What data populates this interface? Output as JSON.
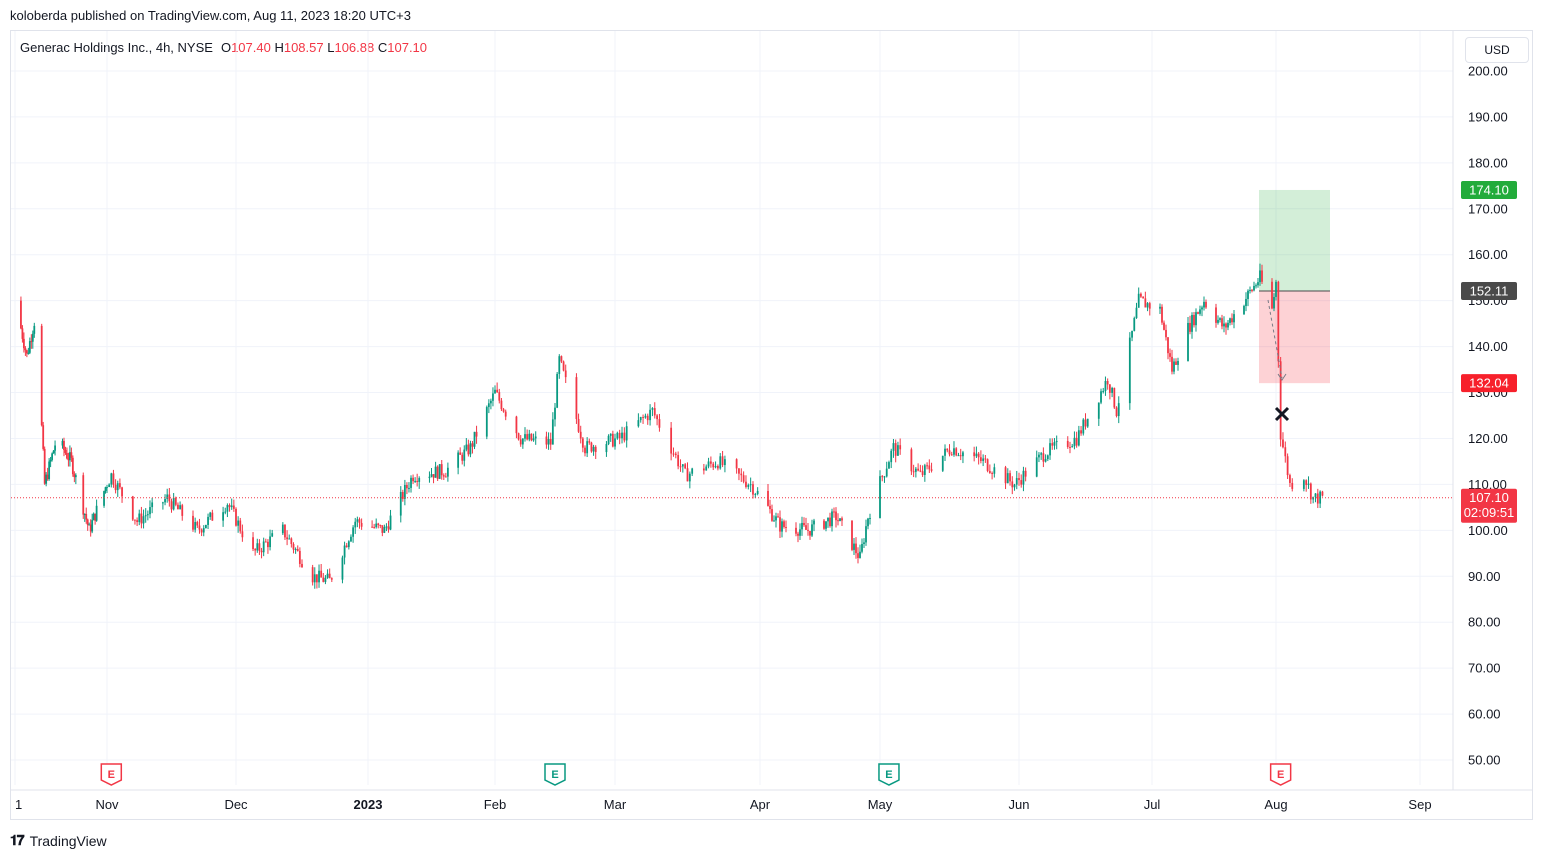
{
  "header": {
    "published": "koloberda published on TradingView.com, Aug 11, 2023 18:20 UTC+3"
  },
  "legend": {
    "symbol": "Generac Holdings Inc., 4h, NYSE",
    "o_label": "O",
    "o_value": "107.40",
    "h_label": "H",
    "h_value": "108.57",
    "l_label": "L",
    "l_value": "106.88",
    "c_label": "C",
    "c_value": "107.10"
  },
  "currency": "USD",
  "footer": {
    "brand": "TradingView"
  },
  "colors": {
    "up": "#089981",
    "down": "#f23645",
    "target": "#22ab3b",
    "stop": "#f7202b",
    "entry": "#4a4a4a"
  },
  "chart_data": {
    "type": "candlestick",
    "x_tick_labels": [
      "1",
      "Nov",
      "Dec",
      "2023",
      "Feb",
      "Mar",
      "Apr",
      "May",
      "Jun",
      "Jul",
      "Aug",
      "Sep"
    ],
    "y_tick_labels": [
      "200.00",
      "190.00",
      "180.00",
      "170.00",
      "160.00",
      "150.00",
      "140.00",
      "130.00",
      "120.00",
      "110.00",
      "100.00",
      "90.00",
      "80.00",
      "70.00",
      "60.00",
      "50.00"
    ],
    "ylim": [
      45,
      202
    ],
    "close_series": [
      {
        "date": "2022-10-01",
        "close": 150
      },
      {
        "date": "2022-10-05",
        "close": 138
      },
      {
        "date": "2022-10-08",
        "close": 147
      },
      {
        "date": "2022-10-11",
        "close": 110
      },
      {
        "date": "2022-10-15",
        "close": 120
      },
      {
        "date": "2022-10-20",
        "close": 115
      },
      {
        "date": "2022-10-26",
        "close": 100
      },
      {
        "date": "2022-11-02",
        "close": 112
      },
      {
        "date": "2022-11-08",
        "close": 102
      },
      {
        "date": "2022-11-15",
        "close": 107
      },
      {
        "date": "2022-11-22",
        "close": 100
      },
      {
        "date": "2022-11-29",
        "close": 106
      },
      {
        "date": "2022-12-05",
        "close": 95
      },
      {
        "date": "2022-12-12",
        "close": 100
      },
      {
        "date": "2022-12-19",
        "close": 90
      },
      {
        "date": "2022-12-23",
        "close": 89
      },
      {
        "date": "2022-12-29",
        "close": 102
      },
      {
        "date": "2023-01-05",
        "close": 100
      },
      {
        "date": "2023-01-12",
        "close": 112
      },
      {
        "date": "2023-01-20",
        "close": 113
      },
      {
        "date": "2023-01-26",
        "close": 118
      },
      {
        "date": "2023-02-01",
        "close": 130
      },
      {
        "date": "2023-02-07",
        "close": 120
      },
      {
        "date": "2023-02-14",
        "close": 119
      },
      {
        "date": "2023-02-16",
        "close": 137
      },
      {
        "date": "2023-02-22",
        "close": 118
      },
      {
        "date": "2023-03-02",
        "close": 120
      },
      {
        "date": "2023-03-09",
        "close": 126
      },
      {
        "date": "2023-03-16",
        "close": 112
      },
      {
        "date": "2023-03-23",
        "close": 115
      },
      {
        "date": "2023-03-30",
        "close": 110
      },
      {
        "date": "2023-04-06",
        "close": 101
      },
      {
        "date": "2023-04-13",
        "close": 100
      },
      {
        "date": "2023-04-20",
        "close": 103
      },
      {
        "date": "2023-04-26",
        "close": 94
      },
      {
        "date": "2023-04-28",
        "close": 103
      },
      {
        "date": "2023-05-04",
        "close": 118
      },
      {
        "date": "2023-05-10",
        "close": 112
      },
      {
        "date": "2023-05-17",
        "close": 118
      },
      {
        "date": "2023-05-24",
        "close": 115
      },
      {
        "date": "2023-05-31",
        "close": 110
      },
      {
        "date": "2023-06-07",
        "close": 117
      },
      {
        "date": "2023-06-14",
        "close": 120
      },
      {
        "date": "2023-06-21",
        "close": 133
      },
      {
        "date": "2023-06-23",
        "close": 126
      },
      {
        "date": "2023-06-28",
        "close": 150
      },
      {
        "date": "2023-07-03",
        "close": 148
      },
      {
        "date": "2023-07-06",
        "close": 135
      },
      {
        "date": "2023-07-10",
        "close": 144
      },
      {
        "date": "2023-07-14",
        "close": 150
      },
      {
        "date": "2023-07-19",
        "close": 144
      },
      {
        "date": "2023-07-24",
        "close": 150
      },
      {
        "date": "2023-07-28",
        "close": 155
      },
      {
        "date": "2023-07-31",
        "close": 148
      },
      {
        "date": "2023-08-01",
        "close": 154
      },
      {
        "date": "2023-08-02",
        "close": 121
      },
      {
        "date": "2023-08-04",
        "close": 110
      },
      {
        "date": "2023-08-07",
        "close": 112
      },
      {
        "date": "2023-08-09",
        "close": 107
      },
      {
        "date": "2023-08-11",
        "close": 107.1
      }
    ],
    "position": {
      "target_label": "174.10",
      "target": 174.1,
      "entry_label": "152.11",
      "entry": 152.11,
      "stop_label": "132.04",
      "stop": 132.04
    },
    "last_price": {
      "label": "107.10",
      "value": 107.1,
      "countdown": "02:09:51"
    },
    "earnings_markers": [
      {
        "date": "2022-11-02",
        "label": "E",
        "color": "#f23645"
      },
      {
        "date": "2023-02-15",
        "label": "E",
        "color": "#089981"
      },
      {
        "date": "2023-05-03",
        "label": "E",
        "color": "#089981"
      },
      {
        "date": "2023-08-02",
        "label": "E",
        "color": "#f23645"
      }
    ]
  }
}
